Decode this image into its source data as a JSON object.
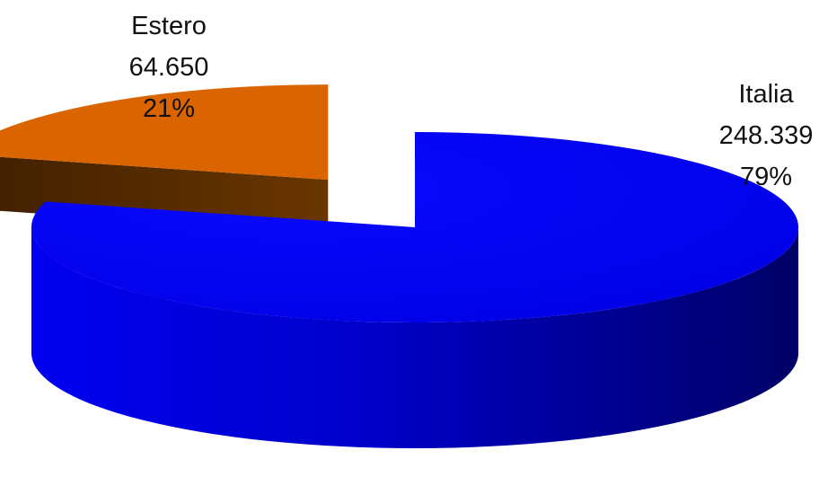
{
  "chart_data": {
    "type": "pie",
    "style": "3d-exploded",
    "slices": [
      {
        "label": "Italia",
        "value_text": "248.339",
        "percent_text": "79%",
        "value": 248339,
        "percent": 79,
        "color": "#0000ff",
        "side_color": "#00008a"
      },
      {
        "label": "Estero",
        "value_text": "64.650",
        "percent_text": "21%",
        "value": 64650,
        "percent": 21,
        "color": "#d96400",
        "side_color": "#5a2e00"
      }
    ],
    "legend": "none",
    "grid": false
  }
}
